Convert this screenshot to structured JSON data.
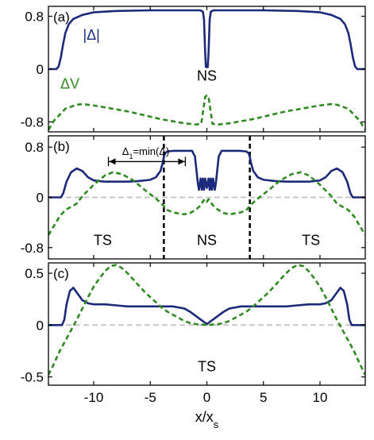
{
  "chart_data": [
    {
      "type": "line",
      "panel_label": "(a)",
      "xlim": [
        -14,
        14
      ],
      "ylim": [
        -0.95,
        0.95
      ],
      "yticks": [
        -0.8,
        0,
        0.8
      ],
      "ytick_labels": [
        "-0.8",
        "0",
        "0.8"
      ],
      "series": [
        {
          "name": "|Δ|",
          "color": "#1b2a7a",
          "dash": "solid",
          "x": [
            -14,
            -13.3,
            -13.1,
            -12.9,
            -12.7,
            -12.5,
            -12.2,
            -11.8,
            -11,
            -10,
            -8,
            -5,
            -2,
            -0.6,
            -0.35,
            -0.25,
            -0.15,
            -0.08,
            0,
            0.08,
            0.15,
            0.25,
            0.35,
            0.6,
            2,
            5,
            8,
            10,
            11,
            11.8,
            12.2,
            12.5,
            12.7,
            12.9,
            13.1,
            13.3,
            14
          ],
          "y": [
            0,
            0,
            0.04,
            0.18,
            0.38,
            0.55,
            0.68,
            0.76,
            0.82,
            0.86,
            0.88,
            0.89,
            0.89,
            0.89,
            0.87,
            0.75,
            0.25,
            0.03,
            0.03,
            0.03,
            0.25,
            0.75,
            0.87,
            0.89,
            0.89,
            0.89,
            0.88,
            0.86,
            0.82,
            0.76,
            0.68,
            0.55,
            0.38,
            0.18,
            0.04,
            0,
            0
          ]
        },
        {
          "name": "ΔV",
          "color": "#2e8b1f",
          "dash": "dashed",
          "x": [
            -14,
            -13.5,
            -12.5,
            -11.5,
            -11,
            -10,
            -9,
            -8,
            -7,
            -6,
            -5,
            -4,
            -3,
            -2,
            -1,
            -0.5,
            -0.3,
            -0.15,
            0,
            0.15,
            0.3,
            0.5,
            1,
            2,
            3,
            4,
            5,
            6,
            7,
            8,
            9,
            10,
            11,
            11.5,
            12.5,
            13.5,
            14
          ],
          "y": [
            -0.92,
            -0.78,
            -0.6,
            -0.54,
            -0.53,
            -0.55,
            -0.58,
            -0.61,
            -0.64,
            -0.68,
            -0.72,
            -0.76,
            -0.79,
            -0.82,
            -0.84,
            -0.83,
            -0.6,
            -0.42,
            -0.4,
            -0.42,
            -0.6,
            -0.83,
            -0.84,
            -0.82,
            -0.79,
            -0.76,
            -0.72,
            -0.68,
            -0.64,
            -0.61,
            -0.58,
            -0.55,
            -0.53,
            -0.54,
            -0.6,
            -0.78,
            -0.92
          ]
        }
      ],
      "annotations": [
        {
          "text": "|Δ|",
          "x": -10.2,
          "y": 0.52,
          "color": "#1b2a7a"
        },
        {
          "text": "ΔV",
          "x": -12.1,
          "y": -0.22,
          "color": "#2e8b1f"
        },
        {
          "text": "NS",
          "x": 0,
          "y": -0.1,
          "color": "#000000"
        }
      ]
    },
    {
      "type": "line",
      "panel_label": "(b)",
      "xlim": [
        -14,
        14
      ],
      "ylim": [
        -0.98,
        0.98
      ],
      "yticks": [
        -0.8,
        0,
        0.8
      ],
      "ytick_labels": [
        "-0.8",
        "0",
        "0.8"
      ],
      "reference_line": {
        "y": 0,
        "color": "#c8c8c8"
      },
      "vlines": [
        -3.8,
        3.8
      ],
      "series": [
        {
          "name": "|Δ|",
          "color": "#1b2a7a",
          "dash": "solid",
          "x": [
            -14,
            -12.9,
            -12.7,
            -12.4,
            -12,
            -11.5,
            -11,
            -10.5,
            -10,
            -9,
            -8,
            -7,
            -6,
            -5,
            -4.5,
            -4.1,
            -3.9,
            -3.8,
            -3.7,
            -3.5,
            -3,
            -2,
            -1.3,
            -1.05,
            -0.9,
            -0.8,
            -0.7,
            -0.55,
            -0.45,
            -0.35,
            -0.25,
            -0.15,
            0,
            0.15,
            0.25,
            0.35,
            0.45,
            0.55,
            0.7,
            0.8,
            0.9,
            1.05,
            1.3,
            2,
            3,
            3.5,
            3.7,
            3.8,
            3.9,
            4.1,
            4.5,
            5,
            6,
            7,
            8,
            9,
            10,
            10.5,
            11,
            11.5,
            12,
            12.4,
            12.7,
            12.9,
            14
          ],
          "y": [
            0,
            0,
            0.06,
            0.25,
            0.4,
            0.46,
            0.42,
            0.32,
            0.27,
            0.25,
            0.25,
            0.25,
            0.26,
            0.28,
            0.32,
            0.42,
            0.55,
            0.64,
            0.7,
            0.73,
            0.74,
            0.74,
            0.74,
            0.65,
            0.4,
            0.23,
            0.12,
            0.3,
            0.12,
            0.3,
            0.12,
            0.3,
            0.15,
            0.3,
            0.12,
            0.3,
            0.12,
            0.3,
            0.12,
            0.23,
            0.4,
            0.65,
            0.74,
            0.74,
            0.74,
            0.73,
            0.7,
            0.64,
            0.55,
            0.42,
            0.32,
            0.28,
            0.26,
            0.25,
            0.25,
            0.25,
            0.27,
            0.32,
            0.42,
            0.46,
            0.4,
            0.25,
            0.06,
            0,
            0
          ]
        },
        {
          "name": "ΔV",
          "color": "#2e8b1f",
          "dash": "dashed",
          "x": [
            -14,
            -13.5,
            -13,
            -12.5,
            -12,
            -11.5,
            -11,
            -10,
            -9,
            -8.3,
            -7.5,
            -6.5,
            -5.5,
            -4.5,
            -4,
            -3.7,
            -3.5,
            -3,
            -2,
            -1.5,
            -1,
            -0.5,
            -0.3,
            -0.15,
            0,
            0.15,
            0.3,
            0.5,
            1,
            1.5,
            2,
            3,
            3.5,
            3.7,
            4,
            4.5,
            5.5,
            6.5,
            7.5,
            8.3,
            9,
            10,
            11,
            11.5,
            12,
            12.5,
            13,
            13.5,
            14
          ],
          "y": [
            -0.6,
            -0.45,
            -0.3,
            -0.2,
            -0.15,
            -0.1,
            0.02,
            0.2,
            0.35,
            0.4,
            0.37,
            0.27,
            0.12,
            -0.02,
            -0.1,
            -0.16,
            -0.2,
            -0.24,
            -0.27,
            -0.25,
            -0.2,
            -0.12,
            -0.05,
            -0.03,
            -0.07,
            -0.03,
            -0.05,
            -0.12,
            -0.2,
            -0.25,
            -0.27,
            -0.24,
            -0.2,
            -0.16,
            -0.1,
            -0.02,
            0.12,
            0.27,
            0.37,
            0.4,
            0.35,
            0.2,
            0.02,
            -0.1,
            -0.15,
            -0.2,
            -0.3,
            -0.45,
            -0.6
          ]
        }
      ],
      "annotations": [
        {
          "text": "TS",
          "x": -9.2,
          "y": -0.68,
          "color": "#000000"
        },
        {
          "text": "NS",
          "x": 0,
          "y": -0.68,
          "color": "#000000"
        },
        {
          "text": "TS",
          "x": 9.2,
          "y": -0.68,
          "color": "#000000"
        }
      ],
      "bracket": {
        "x_from": -8.7,
        "x_to": -1.9,
        "y": 0.57,
        "label_main": "Δ",
        "label_sub": "1",
        "label_rest": "=min(Δ)",
        "label_x": -5.4,
        "label_y": 0.74
      }
    },
    {
      "type": "line",
      "panel_label": "(c)",
      "xlim": [
        -14,
        14
      ],
      "ylim": [
        -0.58,
        0.6
      ],
      "yticks": [
        -0.5,
        0,
        0.5
      ],
      "ytick_labels": [
        "-0.5",
        "0",
        "0.5"
      ],
      "xticks": [
        -10,
        -5,
        0,
        5,
        10
      ],
      "xtick_labels": [
        "-10",
        "-5",
        "0",
        "5",
        "10"
      ],
      "xlabel_main": "x/x",
      "xlabel_sub": "s",
      "reference_line": {
        "y": 0,
        "color": "#c8c8c8"
      },
      "series": [
        {
          "name": "|Δ|",
          "color": "#1b2a7a",
          "dash": "solid",
          "x": [
            -14,
            -12.8,
            -12.6,
            -12.4,
            -12.1,
            -11.8,
            -11.4,
            -11,
            -10.5,
            -10,
            -9,
            -8,
            -7,
            -6,
            -5,
            -4,
            -3,
            -2.5,
            -2,
            -1.5,
            -1,
            -0.5,
            0,
            0.5,
            1,
            1.5,
            2,
            2.5,
            3,
            4,
            5,
            6,
            7,
            8,
            9,
            10,
            10.5,
            11,
            11.4,
            11.8,
            12.1,
            12.4,
            12.6,
            12.8,
            14
          ],
          "y": [
            0,
            0,
            0.05,
            0.2,
            0.33,
            0.36,
            0.3,
            0.24,
            0.21,
            0.2,
            0.2,
            0.19,
            0.18,
            0.18,
            0.18,
            0.18,
            0.18,
            0.17,
            0.16,
            0.13,
            0.09,
            0.05,
            0.01,
            0.05,
            0.09,
            0.13,
            0.16,
            0.17,
            0.18,
            0.18,
            0.18,
            0.18,
            0.18,
            0.19,
            0.2,
            0.2,
            0.21,
            0.24,
            0.3,
            0.36,
            0.33,
            0.2,
            0.05,
            0,
            0
          ]
        },
        {
          "name": "ΔV",
          "color": "#2e8b1f",
          "dash": "dashed",
          "x": [
            -14,
            -13.5,
            -13,
            -12.5,
            -12,
            -11.5,
            -11,
            -10.5,
            -10,
            -9.5,
            -9,
            -8.5,
            -8,
            -7.5,
            -7,
            -6.5,
            -6,
            -5.5,
            -5,
            -4.5,
            -4,
            -3.5,
            -3,
            -2.5,
            -2,
            -1.5,
            -1,
            -0.5,
            0,
            0.5,
            1,
            1.5,
            2,
            2.5,
            3,
            3.5,
            4,
            4.5,
            5,
            5.5,
            6,
            6.5,
            7,
            7.5,
            8,
            8.5,
            9,
            9.5,
            10,
            10.5,
            11,
            11.5,
            12,
            12.5,
            13,
            13.5,
            14
          ],
          "y": [
            -0.48,
            -0.37,
            -0.25,
            -0.15,
            -0.05,
            0.05,
            0.16,
            0.27,
            0.37,
            0.45,
            0.52,
            0.57,
            0.58,
            0.55,
            0.5,
            0.44,
            0.38,
            0.32,
            0.27,
            0.22,
            0.17,
            0.13,
            0.1,
            0.07,
            0.04,
            0.02,
            0.01,
            0.005,
            0,
            0.005,
            0.01,
            0.02,
            0.04,
            0.07,
            0.1,
            0.13,
            0.17,
            0.22,
            0.27,
            0.32,
            0.38,
            0.44,
            0.5,
            0.55,
            0.58,
            0.57,
            0.52,
            0.45,
            0.37,
            0.27,
            0.16,
            0.05,
            -0.05,
            -0.15,
            -0.25,
            -0.37,
            -0.48
          ]
        }
      ],
      "annotations": [
        {
          "text": "TS",
          "x": 0,
          "y": -0.4,
          "color": "#000000"
        }
      ]
    }
  ]
}
